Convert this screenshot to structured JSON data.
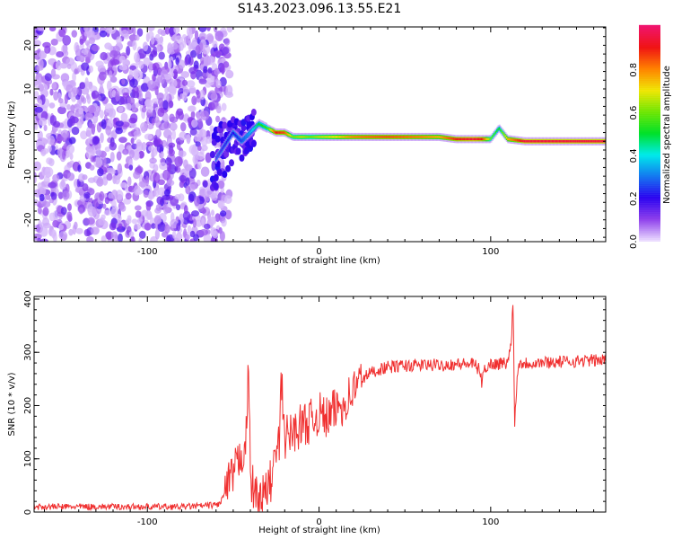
{
  "title": "S143.2023.096.13.55.E21",
  "chart_data": [
    {
      "type": "heatmap",
      "title": "S143.2023.096.13.55.E21",
      "xlabel": "Height of straight line (km)",
      "ylabel": "Frequency (Hz)",
      "xlim": [
        -166,
        167
      ],
      "ylim": [
        -25,
        24.2
      ],
      "xticks": [
        -100,
        0,
        100
      ],
      "yticks": [
        -20,
        -10,
        0,
        10,
        20
      ],
      "colorbar": {
        "label": "Normalized spectral amplitude",
        "range": [
          0,
          1
        ],
        "ticks": [
          "0.0",
          "0.2",
          "0.4",
          "0.6",
          "0.8"
        ]
      },
      "noise_region": {
        "x_range": [
          -166,
          -60
        ],
        "amplitude_range": [
          0.02,
          0.18
        ]
      },
      "ridge": {
        "x": [
          -60,
          -55,
          -50,
          -45,
          -40,
          -35,
          -30,
          -25,
          -20,
          -15,
          -10,
          -5,
          0,
          10,
          20,
          40,
          60,
          70,
          80,
          90,
          95,
          100,
          105,
          110,
          120,
          140,
          167
        ],
        "freq": [
          -6,
          -3,
          0,
          -2,
          0,
          2,
          1,
          0,
          0,
          -1,
          -1,
          -1,
          -1,
          -1,
          -1,
          -1,
          -1,
          -1,
          -1.5,
          -1.5,
          -1.5,
          -1.5,
          1,
          -1.5,
          -2,
          -2,
          -2
        ],
        "amplitude": [
          0.12,
          0.18,
          0.2,
          0.25,
          0.35,
          0.5,
          0.55,
          0.9,
          0.85,
          0.6,
          0.65,
          0.6,
          0.65,
          0.7,
          0.8,
          0.85,
          0.8,
          0.75,
          0.9,
          0.95,
          0.9,
          0.6,
          0.5,
          0.75,
          0.95,
          0.95,
          0.95
        ]
      }
    },
    {
      "type": "line",
      "xlabel": "Height of straight line (km)",
      "ylabel": "SNR (10 * v/v)",
      "xlim": [
        -166,
        167
      ],
      "ylim": [
        0,
        405
      ],
      "xticks": [
        -100,
        0,
        100
      ],
      "yticks": [
        0,
        100,
        200,
        300,
        400
      ],
      "series": [
        {
          "name": "SNR",
          "color": "#f03030",
          "x": [
            -166,
            -140,
            -120,
            -100,
            -80,
            -65,
            -58,
            -55,
            -50,
            -46,
            -44,
            -42,
            -41,
            -40,
            -36,
            -32,
            -28,
            -25,
            -23,
            -22,
            -20,
            -15,
            -10,
            -5,
            0,
            5,
            10,
            15,
            20,
            25,
            30,
            35,
            40,
            50,
            60,
            70,
            80,
            90,
            94,
            95,
            96,
            100,
            110,
            112,
            113,
            114,
            116,
            120,
            140,
            160,
            167
          ],
          "y": [
            10,
            10,
            10,
            10,
            10,
            12,
            15,
            35,
            70,
            100,
            120,
            150,
            295,
            60,
            25,
            30,
            60,
            110,
            130,
            250,
            140,
            150,
            165,
            170,
            185,
            175,
            195,
            205,
            230,
            250,
            262,
            268,
            272,
            275,
            276,
            276,
            278,
            278,
            265,
            235,
            270,
            278,
            280,
            320,
            405,
            170,
            280,
            280,
            282,
            285,
            285
          ],
          "noise": 12
        }
      ]
    }
  ]
}
